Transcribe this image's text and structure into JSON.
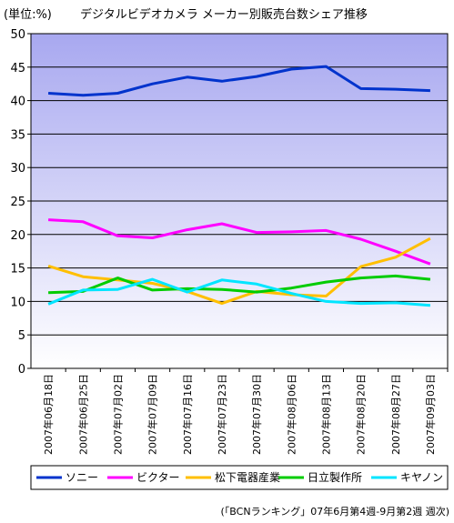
{
  "chart_data": {
    "type": "line",
    "unit_label": "(単位:%)",
    "title": "デジタルビデオカメラ メーカー別販売台数シェア推移",
    "ylim": [
      0,
      50
    ],
    "y_ticks": [
      "0",
      "5",
      "10",
      "15",
      "20",
      "25",
      "30",
      "35",
      "40",
      "45",
      "50"
    ],
    "categories": [
      "2007年06月18日",
      "2007年06月25日",
      "2007年07月02日",
      "2007年07月09日",
      "2007年07月16日",
      "2007年07月23日",
      "2007年07月30日",
      "2007年08月06日",
      "2007年08月13日",
      "2007年08月20日",
      "2007年08月27日",
      "2007年09月03日"
    ],
    "series": [
      {
        "name": "ソニー",
        "color": "#0033cc",
        "values": [
          41.1,
          40.8,
          41.1,
          42.5,
          43.5,
          42.9,
          43.6,
          44.7,
          45.1,
          41.8,
          41.7,
          41.5
        ]
      },
      {
        "name": "ビクター",
        "color": "#ff00ff",
        "values": [
          22.2,
          21.9,
          19.8,
          19.5,
          20.7,
          21.6,
          20.3,
          20.4,
          20.6,
          19.3,
          17.5,
          15.6
        ]
      },
      {
        "name": "松下電器産業",
        "color": "#ffbf00",
        "values": [
          15.3,
          13.7,
          13.2,
          12.7,
          11.5,
          9.7,
          11.5,
          11.0,
          10.8,
          15.2,
          16.6,
          19.4
        ]
      },
      {
        "name": "日立製作所",
        "color": "#00cc00",
        "values": [
          11.3,
          11.5,
          13.5,
          11.7,
          11.9,
          11.8,
          11.4,
          12.0,
          12.9,
          13.5,
          13.8,
          13.3
        ]
      },
      {
        "name": "キヤノン",
        "color": "#00e5ff",
        "values": [
          9.6,
          11.7,
          11.8,
          13.3,
          11.4,
          13.2,
          12.6,
          11.2,
          10.0,
          9.7,
          9.8,
          9.4
        ]
      }
    ],
    "grid": true,
    "legend_position": "bottom",
    "source_note": "(「BCNランキング」07年6月第4週-9月第2週 週次)"
  }
}
